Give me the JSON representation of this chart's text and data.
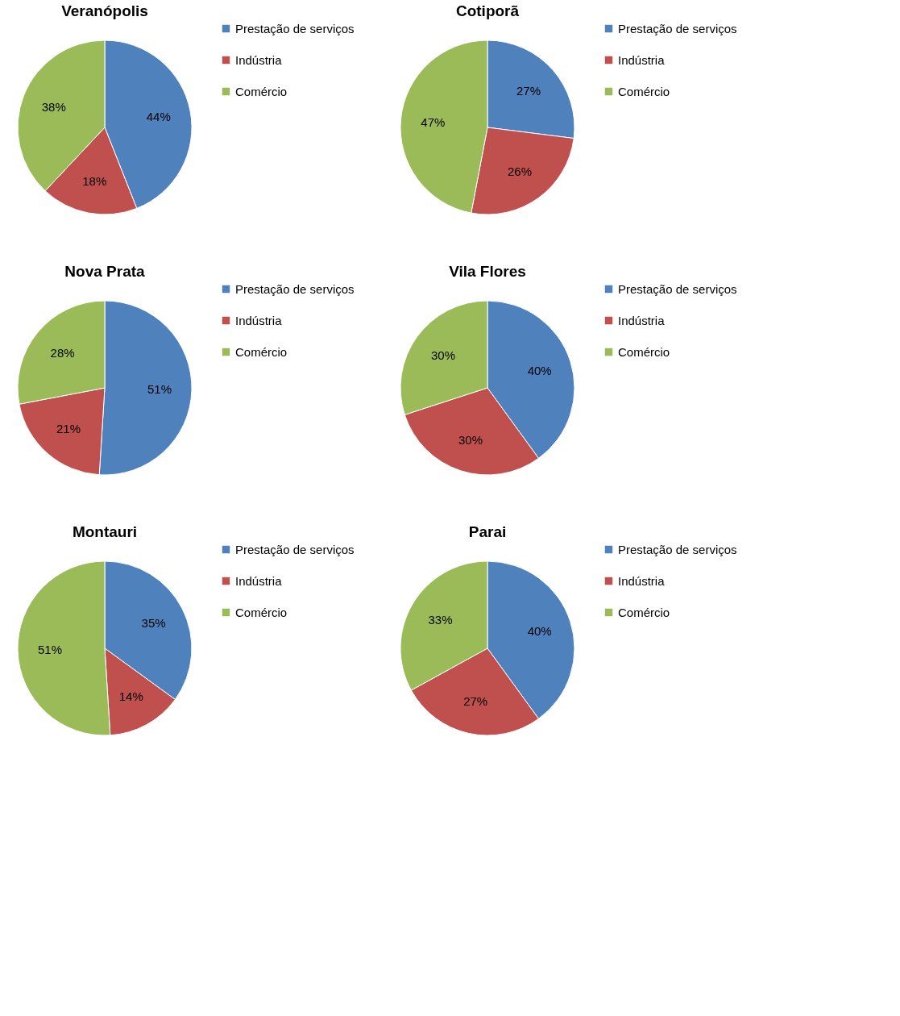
{
  "chart_data": [
    {
      "type": "pie",
      "title": "Veranópolis",
      "categories": [
        "Prestação de serviços",
        "Indústria",
        "Comércio"
      ],
      "values": [
        44,
        18,
        38
      ],
      "colors": [
        "#4f81bd",
        "#c0504d",
        "#9bbb59"
      ],
      "value_labels": [
        "44%",
        "18%",
        "38%"
      ],
      "legend": "right"
    },
    {
      "type": "pie",
      "title": "Cotiporã",
      "categories": [
        "Prestação de serviços",
        "Indústria",
        "Comércio"
      ],
      "values": [
        27,
        26,
        47
      ],
      "colors": [
        "#4f81bd",
        "#c0504d",
        "#9bbb59"
      ],
      "value_labels": [
        "27%",
        "26%",
        "47%"
      ],
      "legend": "right"
    },
    {
      "type": "pie",
      "title": "Nova Prata",
      "categories": [
        "Prestação de serviços",
        "Indústria",
        "Comércio"
      ],
      "values": [
        51,
        21,
        28
      ],
      "colors": [
        "#4f81bd",
        "#c0504d",
        "#9bbb59"
      ],
      "value_labels": [
        "51%",
        "21%",
        "28%"
      ],
      "legend": "right"
    },
    {
      "type": "pie",
      "title": "Vila Flores",
      "categories": [
        "Prestação de serviços",
        "Indústria",
        "Comércio"
      ],
      "values": [
        40,
        30,
        30
      ],
      "colors": [
        "#4f81bd",
        "#c0504d",
        "#9bbb59"
      ],
      "value_labels": [
        "40%",
        "30%",
        "30%"
      ],
      "legend": "right"
    },
    {
      "type": "pie",
      "title": "Montauri",
      "categories": [
        "Prestação de serviços",
        "Indústria",
        "Comércio"
      ],
      "values": [
        35,
        14,
        51
      ],
      "colors": [
        "#4f81bd",
        "#c0504d",
        "#9bbb59"
      ],
      "value_labels": [
        "35%",
        "14%",
        "51%"
      ],
      "legend": "right"
    },
    {
      "type": "pie",
      "title": "Parai",
      "categories": [
        "Prestação de serviços",
        "Indústria",
        "Comércio"
      ],
      "values": [
        40,
        27,
        33
      ],
      "colors": [
        "#4f81bd",
        "#c0504d",
        "#9bbb59"
      ],
      "value_labels": [
        "40%",
        "27%",
        "33%"
      ],
      "legend": "right"
    }
  ]
}
